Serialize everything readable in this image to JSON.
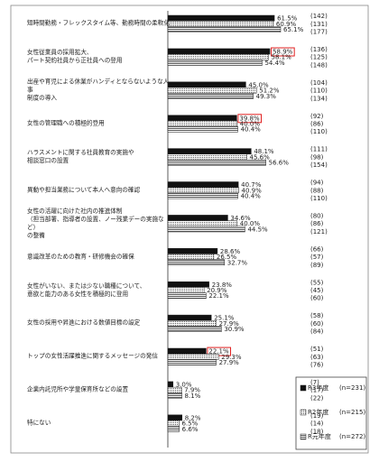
{
  "chart_data": {
    "type": "bar",
    "orientation": "horizontal",
    "categories": [
      "短時間勤務・フレックスタイム等、勤務時間の柔軟化",
      "女性従業員の採用拡大、\nパート契約社員から正社員への登用",
      "出産や育児による休業がハンディとならないような人事\n制度の導入",
      "女性の管理職への積極的登用",
      "ハラスメントに関する社員教育の実施や\n相談窓口の設置",
      "異動や担当業務について本人へ意向の確認",
      "女性の活躍に向けた社内の推進体制\n（担当部署、指導者の設置、ノー残業デーの実施など）\nの整備",
      "意識改革のための教育・研修機会の確保",
      "女性がいない、または少ない職種について、\n意欲と能力のある女性を積極的に登用",
      "女性の採用や昇進における数値目標の設定",
      "トップの女性活躍推進に関するメッセージの発信",
      "企業内託児所や学童保育所などの設置",
      "特にない"
    ],
    "series": [
      {
        "name": "R3年度",
        "n_label": "(n=231)",
        "color": "#111111",
        "pattern": "solid",
        "values": [
          61.5,
          58.9,
          45.0,
          39.8,
          48.1,
          40.7,
          34.6,
          28.6,
          23.8,
          25.1,
          22.1,
          3.0,
          8.2
        ],
        "value_labels": [
          "61.5%",
          "58.9%",
          "45.0%",
          "39.8%",
          "48.1%",
          "40.7%",
          "34.6%",
          "28.6%",
          "23.8%",
          "25.1%",
          "22.1%",
          "3.0%",
          "8.2%"
        ],
        "count_labels": [
          "(142)",
          "(136)",
          "(104)",
          "(92)",
          "(111)",
          "(94)",
          "(80)",
          "(66)",
          "(55)",
          "(58)",
          "(51)",
          "(7)",
          "(19)"
        ]
      },
      {
        "name": "R2年度",
        "n_label": "(n=215)",
        "color": "#666666",
        "pattern": "dots",
        "values": [
          60.9,
          58.1,
          51.2,
          40.0,
          45.6,
          40.9,
          40.0,
          26.5,
          20.9,
          27.9,
          29.3,
          7.9,
          6.5
        ],
        "value_labels": [
          "60.9%",
          "58.1%",
          "51.2%",
          "40.0%",
          "45.6%",
          "40.9%",
          "40.0%",
          "26.5%",
          "20.9%",
          "27.9%",
          "29.3%",
          "7.9%",
          "6.5%"
        ],
        "count_labels": [
          "(131)",
          "(125)",
          "(110)",
          "(86)",
          "(98)",
          "(88)",
          "(86)",
          "(57)",
          "(45)",
          "(60)",
          "(63)",
          "(17)",
          "(14)"
        ]
      },
      {
        "name": "R元年度",
        "n_label": "(n=272)",
        "color": "#555555",
        "pattern": "hatch",
        "values": [
          65.1,
          54.4,
          49.3,
          40.4,
          56.6,
          40.4,
          44.5,
          32.7,
          22.1,
          30.9,
          27.9,
          8.1,
          6.6
        ],
        "value_labels": [
          "65.1%",
          "54.4%",
          "49.3%",
          "40.4%",
          "56.6%",
          "40.4%",
          "44.5%",
          "32.7%",
          "22.1%",
          "30.9%",
          "27.9%",
          "8.1%",
          "6.6%"
        ],
        "count_labels": [
          "(177)",
          "(148)",
          "(134)",
          "(110)",
          "(154)",
          "(110)",
          "(121)",
          "(89)",
          "(60)",
          "(84)",
          "(76)",
          "(22)",
          "(18)"
        ]
      }
    ],
    "xlim": [
      0,
      100
    ],
    "highlights": [
      {
        "series": 0,
        "index": 1
      },
      {
        "series": 0,
        "index": 3
      },
      {
        "series": 0,
        "index": 10
      }
    ],
    "highlight_color": "#e02020",
    "legend": "bottom-right"
  }
}
